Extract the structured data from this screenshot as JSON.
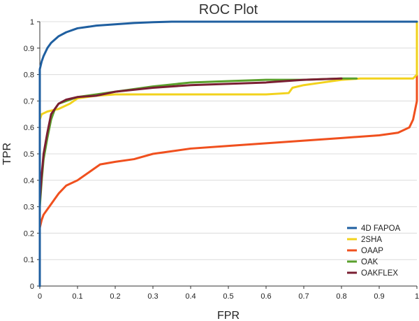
{
  "chart_data": {
    "type": "line",
    "title": "ROC Plot",
    "xlabel": "FPR",
    "ylabel": "TPR",
    "xlim": [
      0,
      1
    ],
    "ylim": [
      0,
      1
    ],
    "x_ticks": [
      "0",
      "0.1",
      "0.2",
      "0.3",
      "0.4",
      "0.5",
      "0.6",
      "0.7",
      "0.8",
      "0.9",
      "1"
    ],
    "y_ticks": [
      "0",
      "0.1",
      "0.2",
      "0.3",
      "0.4",
      "0.5",
      "0.6",
      "0.7",
      "0.8",
      "0.9",
      "1"
    ],
    "grid": "horizontal",
    "legend_position": "bottom-right",
    "series": [
      {
        "name": "4D FAPOA",
        "color": "#1f5fa0",
        "points": [
          [
            0,
            0
          ],
          [
            0,
            0.82
          ],
          [
            0.005,
            0.85
          ],
          [
            0.01,
            0.87
          ],
          [
            0.02,
            0.9
          ],
          [
            0.03,
            0.92
          ],
          [
            0.05,
            0.945
          ],
          [
            0.07,
            0.96
          ],
          [
            0.09,
            0.97
          ],
          [
            0.1,
            0.975
          ],
          [
            0.15,
            0.985
          ],
          [
            0.2,
            0.99
          ],
          [
            0.25,
            0.995
          ],
          [
            0.3,
            0.998
          ],
          [
            0.35,
            1.0
          ],
          [
            1.0,
            1.0
          ]
        ]
      },
      {
        "name": "2SHA",
        "color": "#f2d21c",
        "points": [
          [
            0,
            0
          ],
          [
            0,
            0.63
          ],
          [
            0.005,
            0.65
          ],
          [
            0.02,
            0.66
          ],
          [
            0.05,
            0.67
          ],
          [
            0.08,
            0.69
          ],
          [
            0.1,
            0.71
          ],
          [
            0.15,
            0.72
          ],
          [
            0.2,
            0.725
          ],
          [
            0.3,
            0.725
          ],
          [
            0.4,
            0.725
          ],
          [
            0.5,
            0.725
          ],
          [
            0.6,
            0.725
          ],
          [
            0.66,
            0.73
          ],
          [
            0.67,
            0.75
          ],
          [
            0.7,
            0.76
          ],
          [
            0.75,
            0.77
          ],
          [
            0.8,
            0.78
          ],
          [
            0.85,
            0.785
          ],
          [
            0.9,
            0.785
          ],
          [
            0.99,
            0.785
          ],
          [
            1.0,
            0.8
          ],
          [
            1.0,
            1.0
          ]
        ]
      },
      {
        "name": "OAAP",
        "color": "#f0501e",
        "points": [
          [
            0,
            0
          ],
          [
            0,
            0.22
          ],
          [
            0.005,
            0.25
          ],
          [
            0.01,
            0.27
          ],
          [
            0.02,
            0.29
          ],
          [
            0.03,
            0.31
          ],
          [
            0.04,
            0.33
          ],
          [
            0.05,
            0.35
          ],
          [
            0.07,
            0.38
          ],
          [
            0.1,
            0.4
          ],
          [
            0.13,
            0.43
          ],
          [
            0.16,
            0.46
          ],
          [
            0.2,
            0.47
          ],
          [
            0.25,
            0.48
          ],
          [
            0.3,
            0.5
          ],
          [
            0.35,
            0.51
          ],
          [
            0.4,
            0.52
          ],
          [
            0.5,
            0.53
          ],
          [
            0.6,
            0.54
          ],
          [
            0.7,
            0.55
          ],
          [
            0.8,
            0.56
          ],
          [
            0.9,
            0.57
          ],
          [
            0.95,
            0.58
          ],
          [
            0.98,
            0.6
          ],
          [
            0.99,
            0.63
          ],
          [
            1.0,
            0.7
          ],
          [
            1.0,
            0.8
          ]
        ]
      },
      {
        "name": "OAK",
        "color": "#5aa02c",
        "points": [
          [
            0,
            0
          ],
          [
            0,
            0.3
          ],
          [
            0.005,
            0.4
          ],
          [
            0.01,
            0.48
          ],
          [
            0.02,
            0.56
          ],
          [
            0.03,
            0.63
          ],
          [
            0.04,
            0.67
          ],
          [
            0.05,
            0.69
          ],
          [
            0.07,
            0.7
          ],
          [
            0.1,
            0.715
          ],
          [
            0.15,
            0.725
          ],
          [
            0.2,
            0.735
          ],
          [
            0.3,
            0.755
          ],
          [
            0.4,
            0.77
          ],
          [
            0.5,
            0.775
          ],
          [
            0.6,
            0.78
          ],
          [
            0.7,
            0.78
          ],
          [
            0.8,
            0.785
          ],
          [
            0.84,
            0.785
          ]
        ]
      },
      {
        "name": "OAKFLEX",
        "color": "#7a1f32",
        "points": [
          [
            0,
            0
          ],
          [
            0,
            0.32
          ],
          [
            0.005,
            0.42
          ],
          [
            0.01,
            0.5
          ],
          [
            0.02,
            0.58
          ],
          [
            0.03,
            0.65
          ],
          [
            0.05,
            0.69
          ],
          [
            0.07,
            0.705
          ],
          [
            0.1,
            0.715
          ],
          [
            0.15,
            0.72
          ],
          [
            0.2,
            0.735
          ],
          [
            0.3,
            0.75
          ],
          [
            0.4,
            0.76
          ],
          [
            0.5,
            0.765
          ],
          [
            0.6,
            0.77
          ],
          [
            0.7,
            0.78
          ],
          [
            0.8,
            0.785
          ]
        ]
      }
    ]
  }
}
